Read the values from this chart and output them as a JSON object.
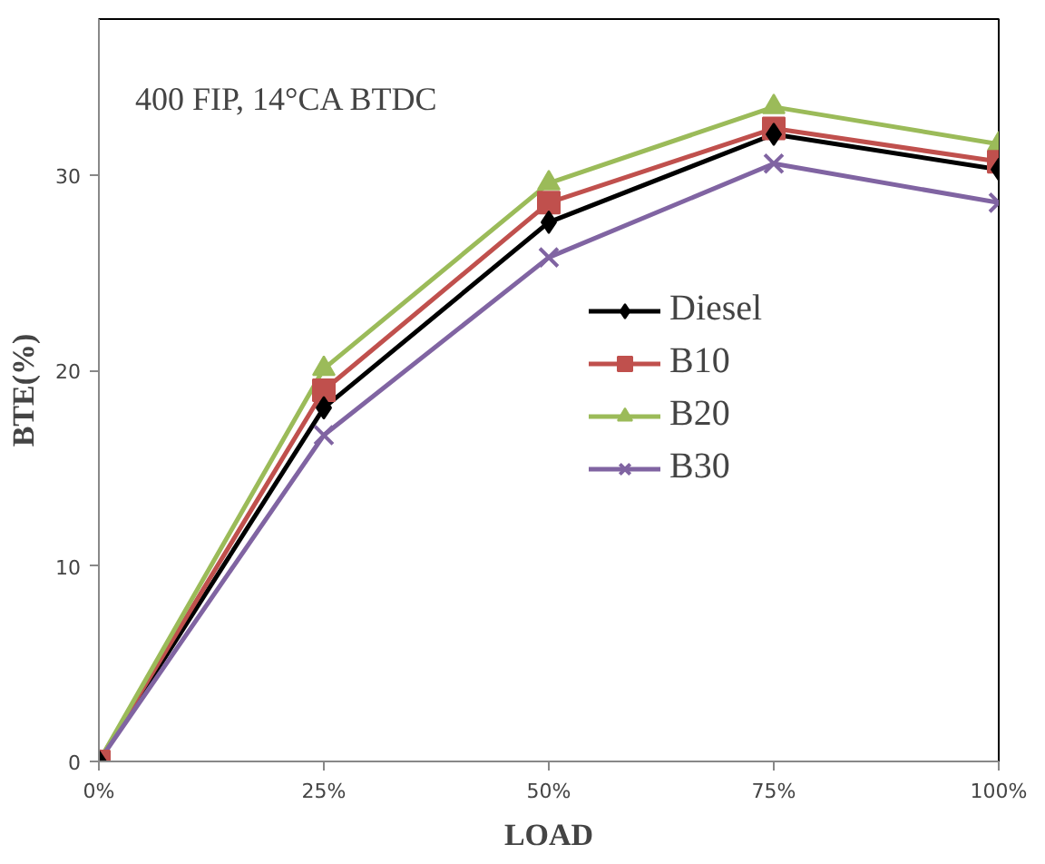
{
  "chart_data": {
    "type": "line",
    "xlabel": "LOAD",
    "ylabel": "BTE(%)",
    "annotations": [
      "400 FIP, 14°CA BTDC"
    ],
    "x": [
      0,
      25,
      50,
      75,
      100
    ],
    "xlim": [
      0,
      100
    ],
    "xticks": [
      {
        "value": 0,
        "label": "0%"
      },
      {
        "value": 25,
        "label": "25%"
      },
      {
        "value": 50,
        "label": "50%"
      },
      {
        "value": 75,
        "label": "75%"
      },
      {
        "value": 100,
        "label": "100%"
      }
    ],
    "ylim": [
      0,
      38
    ],
    "yticks": [
      0,
      10,
      20,
      30
    ],
    "grid": false,
    "legend": "right",
    "line_style": "solid",
    "series": [
      {
        "name": "Diesel",
        "color": "#000000",
        "marker": "diamond",
        "values": [
          0,
          18.1,
          27.6,
          32.1,
          30.3
        ]
      },
      {
        "name": "B10",
        "color": "#c0504d",
        "marker": "square",
        "values": [
          0,
          19.0,
          28.6,
          32.4,
          30.7
        ]
      },
      {
        "name": "B20",
        "color": "#9bbb59",
        "marker": "triangle",
        "values": [
          0,
          20.1,
          29.6,
          33.5,
          31.6
        ]
      },
      {
        "name": "B30",
        "color": "#8064a2",
        "marker": "x",
        "values": [
          0,
          16.7,
          25.8,
          30.6,
          28.6
        ]
      }
    ]
  }
}
